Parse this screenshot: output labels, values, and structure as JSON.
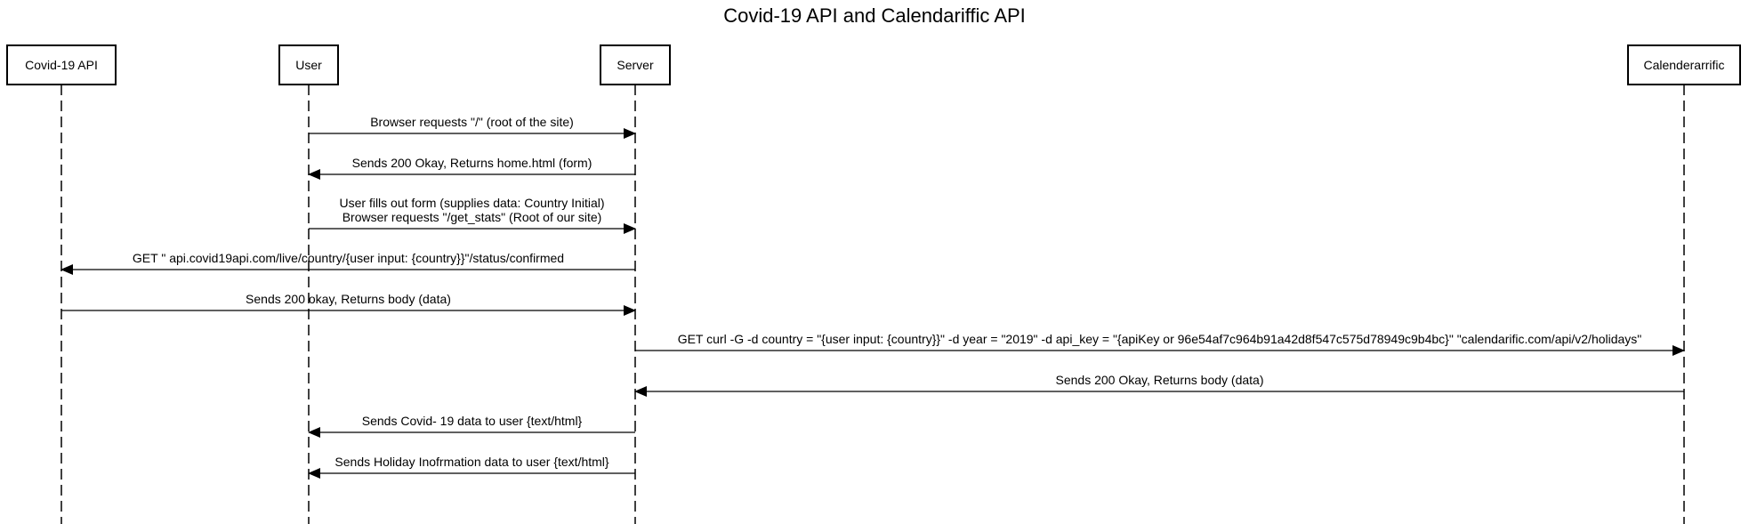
{
  "title": "Covid-19 API and Calendariffic API",
  "actors": [
    {
      "id": "covid",
      "label": "Covid-19 API"
    },
    {
      "id": "user",
      "label": "User"
    },
    {
      "id": "server",
      "label": "Server"
    },
    {
      "id": "cal",
      "label": "Calenderarrific"
    }
  ],
  "messages": [
    {
      "from": "user",
      "to": "server",
      "lines": [
        "Browser requests \"/\" (root of the site)"
      ]
    },
    {
      "from": "server",
      "to": "user",
      "lines": [
        "Sends 200 Okay, Returns home.html (form)"
      ]
    },
    {
      "from": "user",
      "to": "server",
      "lines": [
        "User fills out form (supplies data: Country Initial)",
        "Browser requests \"/get_stats\" (Root of our site)"
      ]
    },
    {
      "from": "server",
      "to": "covid",
      "lines": [
        "GET \" api.covid19api.com/live/country/{user input: {country}}\"/status/confirmed"
      ]
    },
    {
      "from": "covid",
      "to": "server",
      "lines": [
        "Sends 200 okay, Returns body (data)"
      ]
    },
    {
      "from": "server",
      "to": "cal",
      "lines": [
        "GET curl -G -d country = \"{user input: {country}}\" -d year = \"2019\" -d api_key = \"{apiKey or 96e54af7c964b91a42d8f547c575d78949c9b4bc}\" \"calendarific.com/api/v2/holidays\""
      ]
    },
    {
      "from": "cal",
      "to": "server",
      "lines": [
        "Sends 200 Okay, Returns body (data)"
      ]
    },
    {
      "from": "server",
      "to": "user",
      "lines": [
        "Sends Covid- 19 data to user {text/html}"
      ]
    },
    {
      "from": "server",
      "to": "user",
      "lines": [
        "Sends Holiday Inofrmation data to user {text/html}"
      ]
    }
  ]
}
